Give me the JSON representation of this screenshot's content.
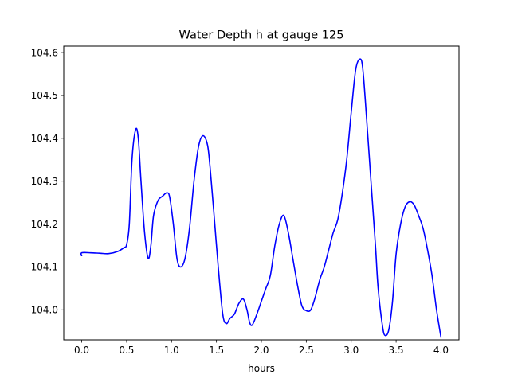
{
  "chart_data": {
    "type": "line",
    "title": "Water Depth h at gauge 125",
    "xlabel": "hours",
    "ylabel": "",
    "xlim": [
      -0.2,
      4.2
    ],
    "ylim": [
      103.93,
      104.615
    ],
    "xticks": [
      0.0,
      0.5,
      1.0,
      1.5,
      2.0,
      2.5,
      3.0,
      3.5,
      4.0
    ],
    "xtick_labels": [
      "0.0",
      "0.5",
      "1.0",
      "1.5",
      "2.0",
      "2.5",
      "3.0",
      "3.5",
      "4.0"
    ],
    "yticks": [
      104.0,
      104.1,
      104.2,
      104.3,
      104.4,
      104.5,
      104.6
    ],
    "ytick_labels": [
      "104.0",
      "104.1",
      "104.2",
      "104.3",
      "104.4",
      "104.5",
      "104.6"
    ],
    "grid": false,
    "series": [
      {
        "color": "#0000ff",
        "x": [
          0.0,
          0.0,
          0.1,
          0.2,
          0.3,
          0.4,
          0.47,
          0.5,
          0.53,
          0.56,
          0.6,
          0.63,
          0.66,
          0.7,
          0.74,
          0.77,
          0.8,
          0.85,
          0.9,
          0.95,
          0.98,
          1.02,
          1.06,
          1.1,
          1.15,
          1.2,
          1.25,
          1.3,
          1.35,
          1.4,
          1.43,
          1.47,
          1.52,
          1.57,
          1.61,
          1.65,
          1.7,
          1.75,
          1.8,
          1.84,
          1.87,
          1.9,
          1.95,
          2.0,
          2.05,
          2.1,
          2.15,
          2.2,
          2.25,
          2.3,
          2.35,
          2.4,
          2.45,
          2.5,
          2.55,
          2.6,
          2.65,
          2.7,
          2.75,
          2.8,
          2.85,
          2.9,
          2.95,
          3.0,
          3.05,
          3.1,
          3.13,
          3.17,
          3.22,
          3.27,
          3.3,
          3.35,
          3.38,
          3.42,
          3.46,
          3.5,
          3.55,
          3.6,
          3.65,
          3.7,
          3.75,
          3.8,
          3.85,
          3.9,
          3.95,
          4.0
        ],
        "y": [
          104.125,
          104.133,
          104.133,
          104.132,
          104.131,
          104.136,
          104.145,
          104.152,
          104.2,
          104.35,
          104.42,
          104.4,
          104.3,
          104.18,
          104.12,
          104.15,
          104.22,
          104.255,
          104.265,
          104.273,
          104.262,
          104.2,
          104.12,
          104.1,
          104.12,
          104.19,
          104.3,
          104.38,
          104.406,
          104.385,
          104.33,
          104.23,
          104.1,
          103.99,
          103.968,
          103.98,
          103.99,
          104.015,
          104.025,
          104.0,
          103.97,
          103.965,
          103.99,
          104.02,
          104.05,
          104.08,
          104.15,
          104.2,
          104.22,
          104.18,
          104.12,
          104.06,
          104.01,
          103.998,
          104.0,
          104.03,
          104.07,
          104.1,
          104.14,
          104.18,
          104.21,
          104.27,
          104.35,
          104.46,
          104.56,
          104.585,
          104.56,
          104.45,
          104.3,
          104.15,
          104.05,
          103.96,
          103.94,
          103.955,
          104.02,
          104.13,
          104.2,
          104.24,
          104.252,
          104.245,
          104.22,
          104.19,
          104.14,
          104.08,
          104.0,
          103.935
        ]
      }
    ]
  }
}
